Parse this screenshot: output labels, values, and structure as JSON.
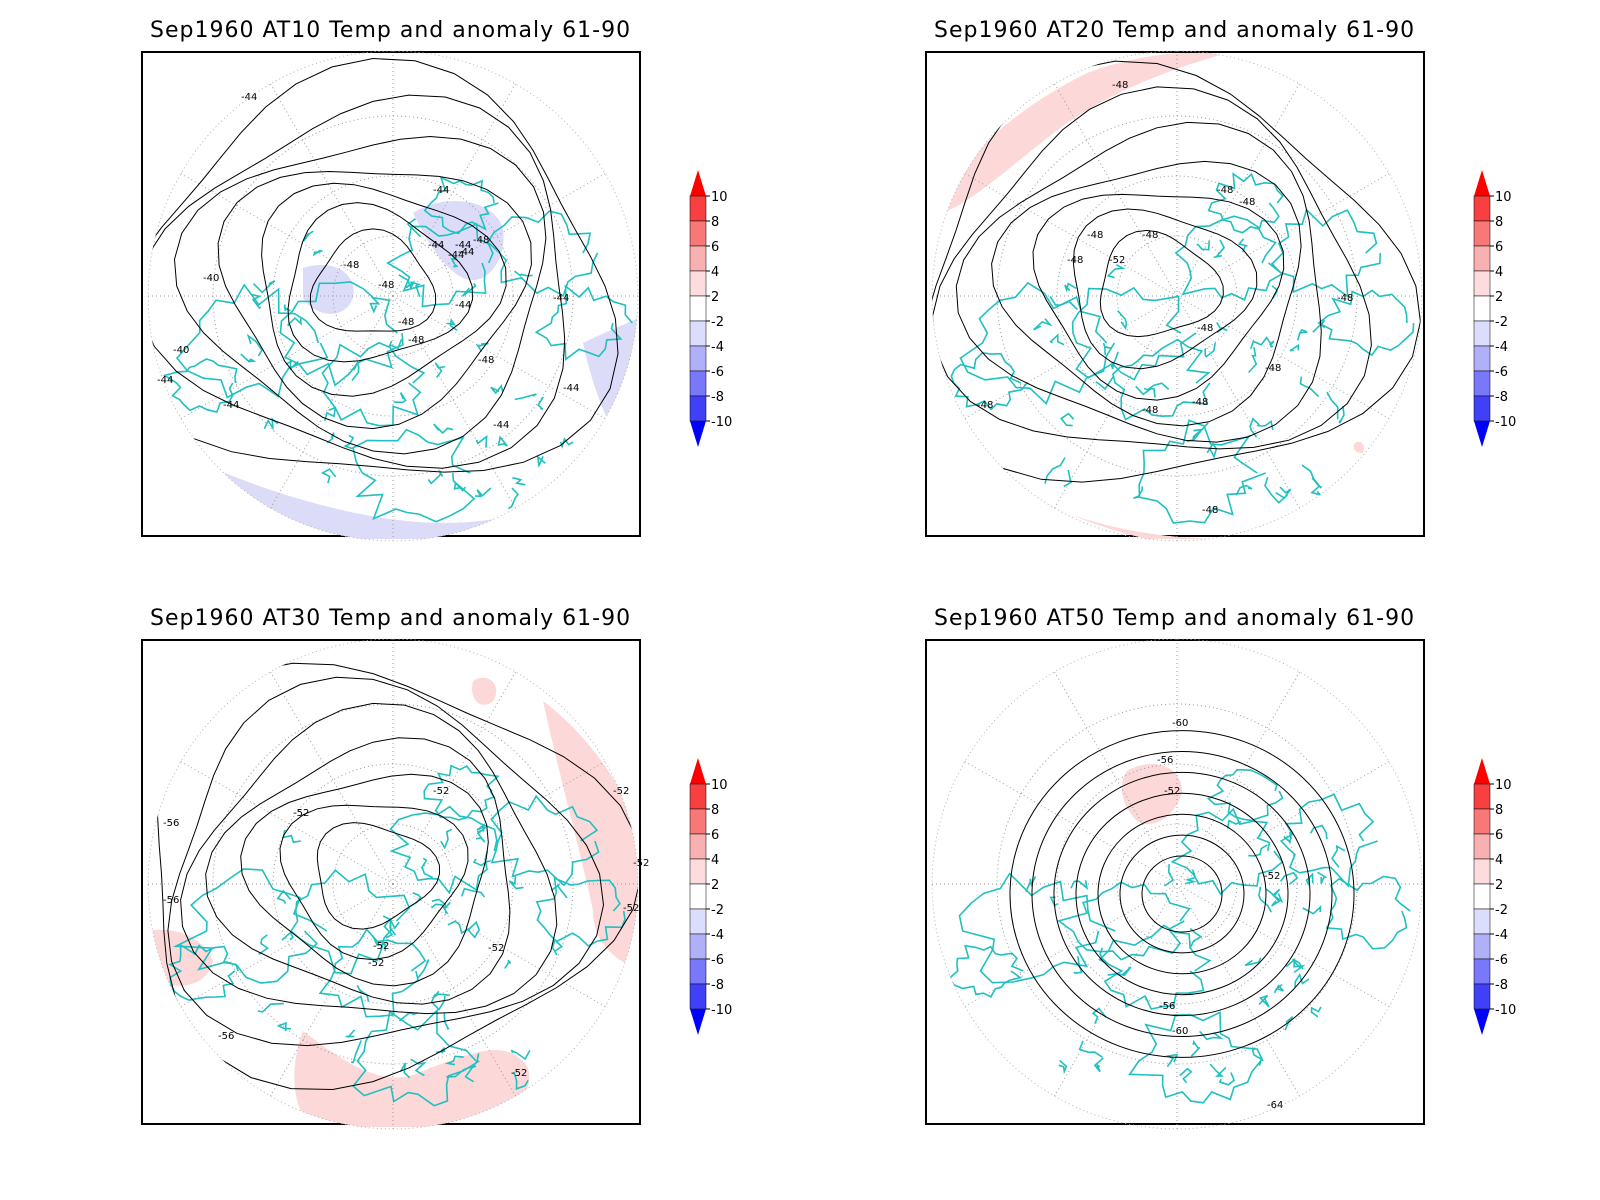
{
  "panels": [
    {
      "title": "Sep1960 AT10 Temp and anomaly 61-90",
      "contour_labels": [
        "-44",
        "-44",
        "-44",
        "-44",
        "-44",
        "-44",
        "-40",
        "-40",
        "-44",
        "-44",
        "-48",
        "-48",
        "-48",
        "-48",
        "-48",
        "-44",
        "-44",
        "-48",
        "-44",
        "-44"
      ],
      "anomaly_fill": "#dcdcf8"
    },
    {
      "title": "Sep1960 AT20 Temp and anomaly 61-90",
      "contour_labels": [
        "-48",
        "-48",
        "-48",
        "-48",
        "-48",
        "-48",
        "-52",
        "-48",
        "-48",
        "-48",
        "-48",
        "-48",
        "-48",
        "-48"
      ],
      "anomaly_fill": "#fcd8d8"
    },
    {
      "title": "Sep1960 AT30 Temp and anomaly 61-90",
      "contour_labels": [
        "-52",
        "-52",
        "-56",
        "-56",
        "-52",
        "-52",
        "-52",
        "-52",
        "-52",
        "-52",
        "-56",
        "-52"
      ],
      "anomaly_fill": "#fcd8d8"
    },
    {
      "title": "Sep1960 AT50 Temp and anomaly 61-90",
      "contour_labels": [
        "-60",
        "-56",
        "-52",
        "-52",
        "-56",
        "-60",
        "-64"
      ],
      "anomaly_fill": "#fcd8d8"
    }
  ],
  "colorbar": {
    "labels": [
      "10",
      "8",
      "6",
      "4",
      "2",
      "-2",
      "-4",
      "-6",
      "-8",
      "-10"
    ],
    "colors": [
      "#ff0000",
      "#f84040",
      "#f87878",
      "#f8b0b0",
      "#fcdcdc",
      "#ffffff",
      "#dcdcfc",
      "#b0b0f8",
      "#7878f8",
      "#4040f8",
      "#0000ff"
    ]
  },
  "colors": {
    "coastline": "#20c0c0",
    "contour": "#000000",
    "grid": "#999999"
  }
}
